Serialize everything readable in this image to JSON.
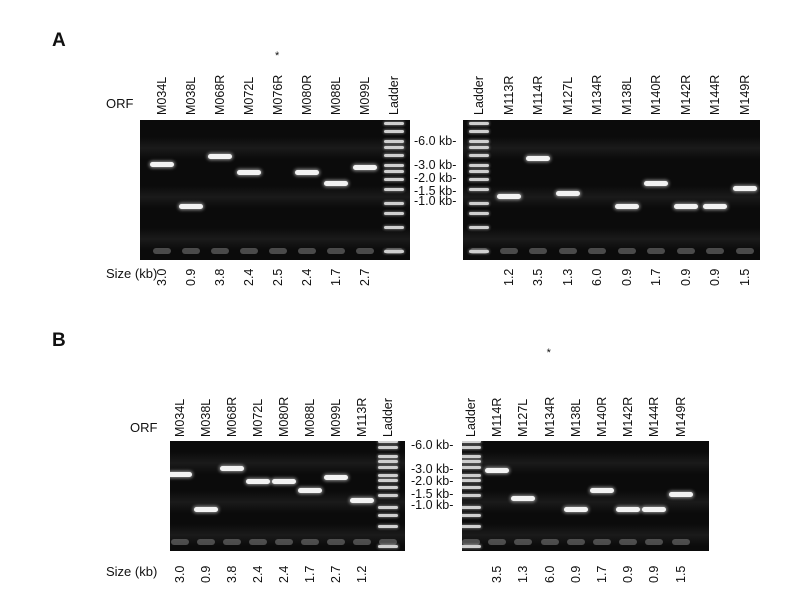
{
  "panels": [
    {
      "letter": "A",
      "orf_label": "ORF",
      "size_label": "Size (kb)",
      "markers": [
        "-6.0 kb-",
        "-3.0 kb-",
        "-2.0 kb-",
        "-1.5 kb-",
        "-1.0 kb-"
      ],
      "left_gel": {
        "lanes": [
          {
            "name": "M034L",
            "size": "3.0",
            "starred": false
          },
          {
            "name": "M038L",
            "size": "0.9",
            "starred": false
          },
          {
            "name": "M068R",
            "size": "3.8",
            "starred": false
          },
          {
            "name": "M072L",
            "size": "2.4",
            "starred": false
          },
          {
            "name": "M076R",
            "size": "2.5",
            "starred": true
          },
          {
            "name": "M080R",
            "size": "2.4",
            "starred": false
          },
          {
            "name": "M088L",
            "size": "1.7",
            "starred": false
          },
          {
            "name": "M099L",
            "size": "2.7",
            "starred": false
          },
          {
            "name": "Ladder",
            "size": "",
            "starred": false
          }
        ]
      },
      "right_gel": {
        "lanes": [
          {
            "name": "Ladder",
            "size": "",
            "starred": false
          },
          {
            "name": "M113R",
            "size": "1.2",
            "starred": false
          },
          {
            "name": "M114R",
            "size": "3.5",
            "starred": false
          },
          {
            "name": "M127L",
            "size": "1.3",
            "starred": false
          },
          {
            "name": "M134R",
            "size": "6.0",
            "starred": false
          },
          {
            "name": "M138L",
            "size": "0.9",
            "starred": false
          },
          {
            "name": "M140R",
            "size": "1.7",
            "starred": false
          },
          {
            "name": "M142R",
            "size": "0.9",
            "starred": false
          },
          {
            "name": "M144R",
            "size": "0.9",
            "starred": false
          },
          {
            "name": "M149R",
            "size": "1.5",
            "starred": false
          }
        ]
      }
    },
    {
      "letter": "B",
      "orf_label": "ORF",
      "size_label": "Size (kb)",
      "markers": [
        "-6.0 kb-",
        "-3.0 kb-",
        "-2.0 kb-",
        "-1.5 kb-",
        "-1.0 kb-"
      ],
      "left_gel": {
        "lanes": [
          {
            "name": "M034L",
            "size": "3.0",
            "starred": false
          },
          {
            "name": "M038L",
            "size": "0.9",
            "starred": false
          },
          {
            "name": "M068R",
            "size": "3.8",
            "starred": false
          },
          {
            "name": "M072L",
            "size": "2.4",
            "starred": false
          },
          {
            "name": "M080R",
            "size": "2.4",
            "starred": false
          },
          {
            "name": "M088L",
            "size": "1.7",
            "starred": false
          },
          {
            "name": "M099L",
            "size": "2.7",
            "starred": false
          },
          {
            "name": "M113R",
            "size": "1.2",
            "starred": false
          },
          {
            "name": "Ladder",
            "size": "",
            "starred": false
          }
        ]
      },
      "right_gel": {
        "lanes": [
          {
            "name": "Ladder",
            "size": "",
            "starred": false
          },
          {
            "name": "M114R",
            "size": "3.5",
            "starred": false
          },
          {
            "name": "M127L",
            "size": "1.3",
            "starred": false
          },
          {
            "name": "M134R",
            "size": "6.0",
            "starred": true
          },
          {
            "name": "M138L",
            "size": "0.9",
            "starred": false
          },
          {
            "name": "M140R",
            "size": "1.7",
            "starred": false
          },
          {
            "name": "M142R",
            "size": "0.9",
            "starred": false
          },
          {
            "name": "M144R",
            "size": "0.9",
            "starred": false
          },
          {
            "name": "M149R",
            "size": "1.5",
            "starred": false
          }
        ]
      }
    }
  ],
  "star_symbol": "*",
  "ladder_sizes_kb": [
    10,
    8,
    6,
    5,
    4,
    3,
    2.5,
    2,
    1.5,
    1,
    0.75,
    0.5,
    0.25
  ],
  "visible_band_in_lane": {
    "A_left": [
      true,
      true,
      true,
      true,
      false,
      true,
      true,
      true
    ],
    "A_right": [
      true,
      true,
      true,
      false,
      true,
      true,
      true,
      true,
      true
    ],
    "B_left": [
      true,
      true,
      true,
      true,
      true,
      true,
      true,
      true
    ],
    "B_right": [
      true,
      true,
      false,
      true,
      true,
      true,
      true,
      true
    ]
  }
}
